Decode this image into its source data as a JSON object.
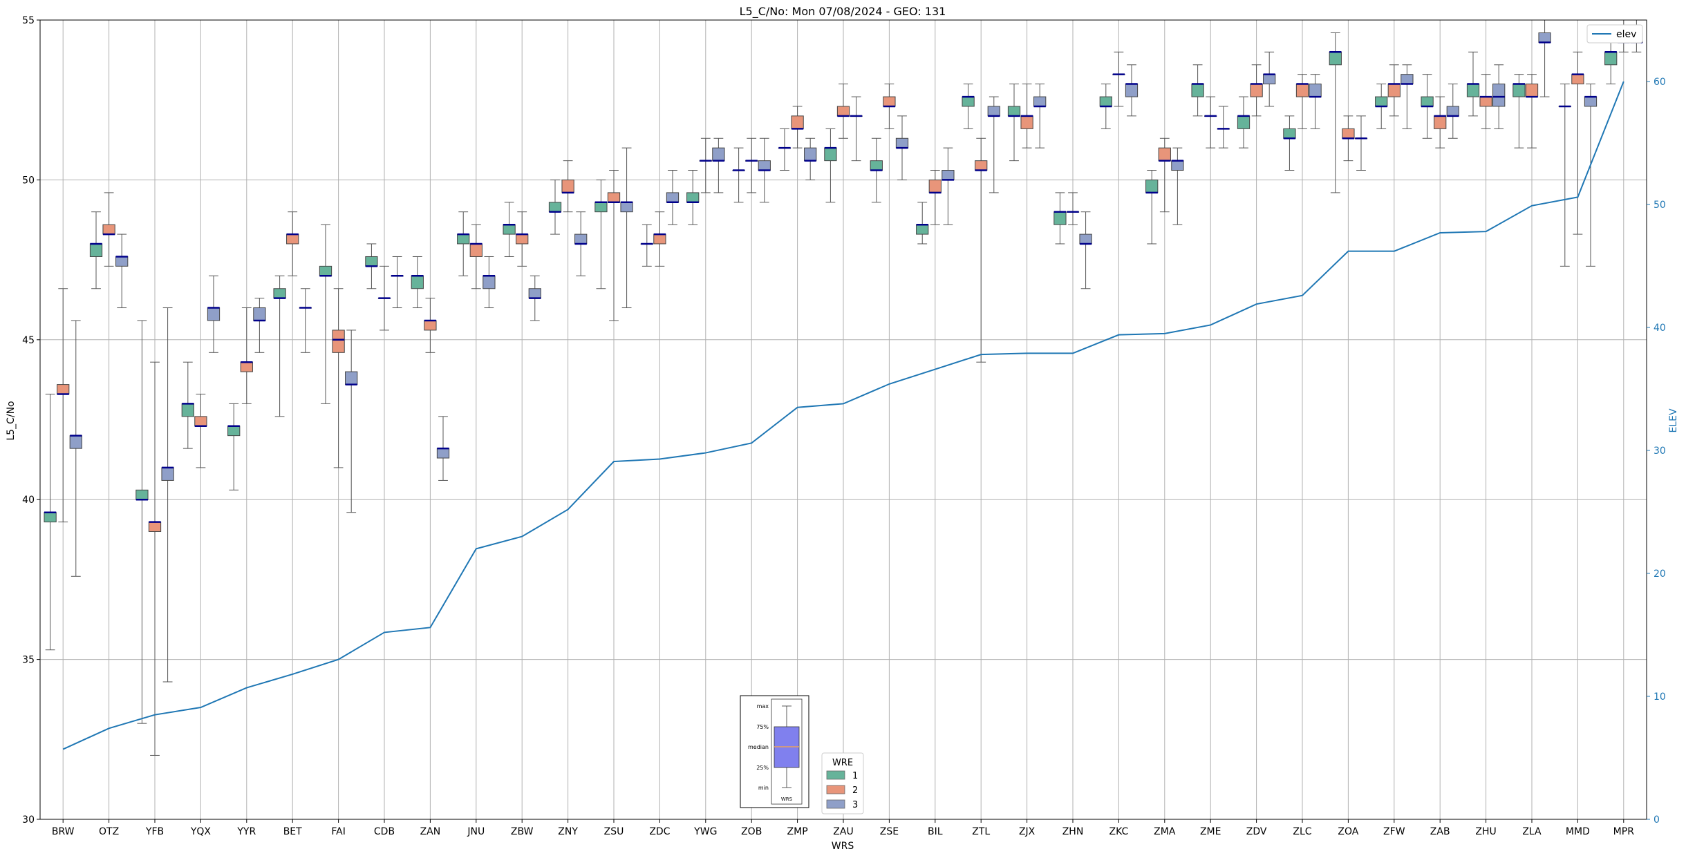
{
  "chart_data": {
    "type": "box",
    "title": "L5_C/No: Mon 07/08/2024 - GEO: 131",
    "xlabel": "WRS",
    "ylabel": "L5_C/No",
    "y2label": "ELEV",
    "ylim": [
      30,
      55
    ],
    "y2lim": [
      0,
      65
    ],
    "yticks": [
      30,
      35,
      40,
      45,
      50,
      55
    ],
    "y2ticks": [
      0,
      10,
      20,
      30,
      40,
      50,
      60
    ],
    "grid": true,
    "categories": [
      "BRW",
      "OTZ",
      "YFB",
      "YQX",
      "YYR",
      "BET",
      "FAI",
      "CDB",
      "ZAN",
      "JNU",
      "ZBW",
      "ZNY",
      "ZSU",
      "ZDC",
      "YWG",
      "ZOB",
      "ZMP",
      "ZAU",
      "ZSE",
      "BIL",
      "ZTL",
      "ZJX",
      "ZHN",
      "ZKC",
      "ZMA",
      "ZME",
      "ZDV",
      "ZLC",
      "ZOA",
      "ZFW",
      "ZAB",
      "ZHU",
      "ZLA",
      "MMD",
      "MPR"
    ],
    "colors": {
      "1": "#66b39a",
      "2": "#e8957a",
      "3": "#8f9fc8",
      "median": "#00008b",
      "elev": "#1f77b4",
      "whisker": "#555555"
    },
    "boxes": {
      "BRW": [
        [
          35.3,
          39.3,
          39.6,
          39.6,
          43.3
        ],
        [
          39.3,
          43.3,
          43.3,
          43.6,
          46.6
        ],
        [
          37.6,
          41.6,
          42.0,
          42.0,
          45.6
        ]
      ],
      "OTZ": [
        [
          46.6,
          47.6,
          48.0,
          48.0,
          49.0
        ],
        [
          47.3,
          48.3,
          48.3,
          48.6,
          49.6
        ],
        [
          46.0,
          47.3,
          47.6,
          47.6,
          48.3
        ]
      ],
      "YFB": [
        [
          33.0,
          40.0,
          40.0,
          40.3,
          45.6
        ],
        [
          32.0,
          39.0,
          39.3,
          39.3,
          44.3
        ],
        [
          34.3,
          40.6,
          41.0,
          41.0,
          46.0
        ]
      ],
      "YQX": [
        [
          41.6,
          42.6,
          43.0,
          43.0,
          44.3
        ],
        [
          41.0,
          42.3,
          42.3,
          42.6,
          43.3
        ],
        [
          44.6,
          45.6,
          46.0,
          46.0,
          47.0
        ]
      ],
      "YYR": [
        [
          40.3,
          42.0,
          42.3,
          42.3,
          43.0
        ],
        [
          43.0,
          44.0,
          44.3,
          44.3,
          46.0
        ],
        [
          44.6,
          45.6,
          45.6,
          46.0,
          46.3
        ]
      ],
      "BET": [
        [
          42.6,
          46.3,
          46.3,
          46.6,
          47.0
        ],
        [
          47.0,
          48.0,
          48.3,
          48.3,
          49.0
        ],
        [
          44.6,
          46.0,
          46.0,
          46.0,
          46.6
        ]
      ],
      "FAI": [
        [
          43.0,
          47.0,
          47.0,
          47.3,
          48.6
        ],
        [
          41.0,
          44.6,
          45.0,
          45.3,
          46.6
        ],
        [
          39.6,
          43.6,
          43.6,
          44.0,
          45.3
        ]
      ],
      "CDB": [
        [
          46.6,
          47.3,
          47.3,
          47.6,
          48.0
        ],
        [
          45.3,
          46.3,
          46.3,
          46.3,
          47.3
        ],
        [
          46.0,
          47.0,
          47.0,
          47.0,
          47.6
        ]
      ],
      "ZAN": [
        [
          46.0,
          46.6,
          47.0,
          47.0,
          47.6
        ],
        [
          44.6,
          45.3,
          45.6,
          45.6,
          46.3
        ],
        [
          40.6,
          41.3,
          41.6,
          41.6,
          42.6
        ]
      ],
      "JNU": [
        [
          47.0,
          48.0,
          48.3,
          48.3,
          49.0
        ],
        [
          46.6,
          47.6,
          48.0,
          48.0,
          48.6
        ],
        [
          46.0,
          46.6,
          47.0,
          47.0,
          47.6
        ]
      ],
      "ZBW": [
        [
          47.6,
          48.3,
          48.6,
          48.6,
          49.3
        ],
        [
          47.3,
          48.0,
          48.3,
          48.3,
          49.0
        ],
        [
          45.6,
          46.3,
          46.3,
          46.6,
          47.0
        ]
      ],
      "ZNY": [
        [
          48.3,
          49.0,
          49.0,
          49.3,
          50.0
        ],
        [
          49.0,
          49.6,
          49.6,
          50.0,
          50.6
        ],
        [
          47.0,
          48.0,
          48.0,
          48.3,
          49.0
        ]
      ],
      "ZSU": [
        [
          46.6,
          49.0,
          49.3,
          49.3,
          50.0
        ],
        [
          45.6,
          49.3,
          49.3,
          49.6,
          50.3
        ],
        [
          46.0,
          49.0,
          49.3,
          49.3,
          51.0
        ]
      ],
      "ZDC": [
        [
          47.3,
          48.0,
          48.0,
          48.0,
          48.6
        ],
        [
          47.3,
          48.0,
          48.3,
          48.3,
          49.0
        ],
        [
          48.6,
          49.3,
          49.3,
          49.6,
          50.3
        ]
      ],
      "YWG": [
        [
          48.6,
          49.3,
          49.3,
          49.6,
          50.3
        ],
        [
          49.6,
          50.6,
          50.6,
          50.6,
          51.3
        ],
        [
          49.6,
          50.6,
          50.6,
          51.0,
          51.3
        ]
      ],
      "ZOB": [
        [
          49.3,
          50.3,
          50.3,
          50.3,
          51.0
        ],
        [
          49.6,
          50.6,
          50.6,
          50.6,
          51.3
        ],
        [
          49.3,
          50.3,
          50.3,
          50.6,
          51.3
        ]
      ],
      "ZMP": [
        [
          50.3,
          51.0,
          51.0,
          51.0,
          51.6
        ],
        [
          51.0,
          51.6,
          51.6,
          52.0,
          52.3
        ],
        [
          50.0,
          50.6,
          50.6,
          51.0,
          51.3
        ]
      ],
      "ZAU": [
        [
          49.3,
          50.6,
          51.0,
          51.0,
          51.6
        ],
        [
          51.3,
          52.0,
          52.0,
          52.3,
          53.0
        ],
        [
          50.6,
          52.0,
          52.0,
          52.0,
          52.6
        ]
      ],
      "ZSE": [
        [
          49.3,
          50.3,
          50.3,
          50.6,
          51.3
        ],
        [
          51.6,
          52.3,
          52.3,
          52.6,
          53.0
        ],
        [
          50.0,
          51.0,
          51.0,
          51.3,
          52.0
        ]
      ],
      "BIL": [
        [
          48.0,
          48.3,
          48.6,
          48.6,
          49.3
        ],
        [
          48.6,
          49.6,
          49.6,
          50.0,
          50.3
        ],
        [
          48.6,
          50.0,
          50.0,
          50.3,
          51.0
        ]
      ],
      "ZTL": [
        [
          51.6,
          52.3,
          52.6,
          52.6,
          53.0
        ],
        [
          44.3,
          50.3,
          50.3,
          50.6,
          51.3
        ],
        [
          49.6,
          52.0,
          52.0,
          52.3,
          52.6
        ]
      ],
      "ZJX": [
        [
          50.6,
          52.0,
          52.0,
          52.3,
          53.0
        ],
        [
          51.0,
          51.6,
          52.0,
          52.0,
          53.0
        ],
        [
          51.0,
          52.3,
          52.3,
          52.6,
          53.0
        ]
      ],
      "ZHN": [
        [
          48.0,
          48.6,
          49.0,
          49.0,
          49.6
        ],
        [
          48.6,
          49.0,
          49.0,
          49.0,
          49.6
        ],
        [
          46.6,
          48.0,
          48.0,
          48.3,
          49.0
        ]
      ],
      "ZKC": [
        [
          51.6,
          52.3,
          52.3,
          52.6,
          53.0
        ],
        [
          52.3,
          53.3,
          53.3,
          53.3,
          54.0
        ],
        [
          52.0,
          52.6,
          53.0,
          53.0,
          53.6
        ]
      ],
      "ZMA": [
        [
          48.0,
          49.6,
          49.6,
          50.0,
          50.3
        ],
        [
          49.0,
          50.6,
          50.6,
          51.0,
          51.3
        ],
        [
          48.6,
          50.3,
          50.6,
          50.6,
          51.0
        ]
      ],
      "ZME": [
        [
          52.0,
          52.6,
          53.0,
          53.0,
          53.6
        ],
        [
          51.0,
          52.0,
          52.0,
          52.0,
          52.6
        ],
        [
          51.0,
          51.6,
          51.6,
          51.6,
          52.3
        ]
      ],
      "ZDV": [
        [
          51.0,
          51.6,
          52.0,
          52.0,
          52.6
        ],
        [
          52.0,
          52.6,
          53.0,
          53.0,
          53.6
        ],
        [
          52.3,
          53.0,
          53.3,
          53.3,
          54.0
        ]
      ],
      "ZLC": [
        [
          50.3,
          51.3,
          51.3,
          51.6,
          52.0
        ],
        [
          51.6,
          52.6,
          53.0,
          53.0,
          53.3
        ],
        [
          51.6,
          52.6,
          52.6,
          53.0,
          53.3
        ]
      ],
      "ZOA": [
        [
          49.6,
          53.6,
          54.0,
          54.0,
          54.6
        ],
        [
          50.6,
          51.3,
          51.3,
          51.6,
          52.0
        ],
        [
          50.3,
          51.3,
          51.3,
          51.3,
          52.0
        ]
      ],
      "ZFW": [
        [
          51.6,
          52.3,
          52.3,
          52.6,
          53.0
        ],
        [
          52.0,
          52.6,
          53.0,
          53.0,
          53.6
        ],
        [
          51.6,
          53.0,
          53.0,
          53.3,
          53.6
        ]
      ],
      "ZAB": [
        [
          51.3,
          52.3,
          52.3,
          52.6,
          53.3
        ],
        [
          51.0,
          51.6,
          52.0,
          52.0,
          52.6
        ],
        [
          51.3,
          52.0,
          52.0,
          52.3,
          53.0
        ]
      ],
      "ZHU": [
        [
          52.0,
          52.6,
          53.0,
          53.0,
          54.0
        ],
        [
          51.6,
          52.3,
          52.6,
          52.6,
          53.3
        ],
        [
          51.6,
          52.3,
          52.6,
          53.0,
          53.6
        ]
      ],
      "ZLA": [
        [
          51.0,
          52.6,
          53.0,
          53.0,
          53.3
        ],
        [
          51.0,
          52.6,
          52.6,
          53.0,
          53.3
        ],
        [
          52.6,
          54.3,
          54.3,
          54.6,
          55.0
        ]
      ],
      "MMD": [
        [
          47.3,
          52.3,
          52.3,
          52.3,
          53.0
        ],
        [
          48.3,
          53.0,
          53.3,
          53.3,
          54.0
        ],
        [
          47.3,
          52.3,
          52.6,
          52.6,
          53.0
        ]
      ],
      "MPR": [
        [
          53.0,
          53.6,
          54.0,
          54.0,
          54.6
        ],
        [
          54.0,
          54.3,
          54.3,
          54.6,
          55.0
        ],
        [
          54.0,
          54.3,
          54.3,
          54.6,
          55.0
        ]
      ]
    },
    "elev": [
      5.7,
      7.4,
      8.5,
      9.1,
      10.7,
      11.8,
      13.0,
      15.2,
      15.6,
      22.0,
      23.0,
      25.2,
      29.1,
      29.3,
      29.8,
      30.6,
      33.5,
      33.8,
      35.4,
      36.6,
      37.8,
      37.9,
      37.9,
      39.4,
      39.5,
      40.2,
      41.9,
      42.6,
      46.2,
      46.2,
      47.7,
      47.8,
      49.9,
      50.6,
      60.0
    ],
    "legend_elev": {
      "label": "elev",
      "placement": "top-right"
    },
    "legend_wre": {
      "title": "WRE",
      "items": [
        "1",
        "2",
        "3"
      ]
    },
    "key_inset": {
      "labels": [
        "max",
        "75%",
        "median",
        "25%",
        "min"
      ],
      "xlabel": "WRS"
    }
  }
}
